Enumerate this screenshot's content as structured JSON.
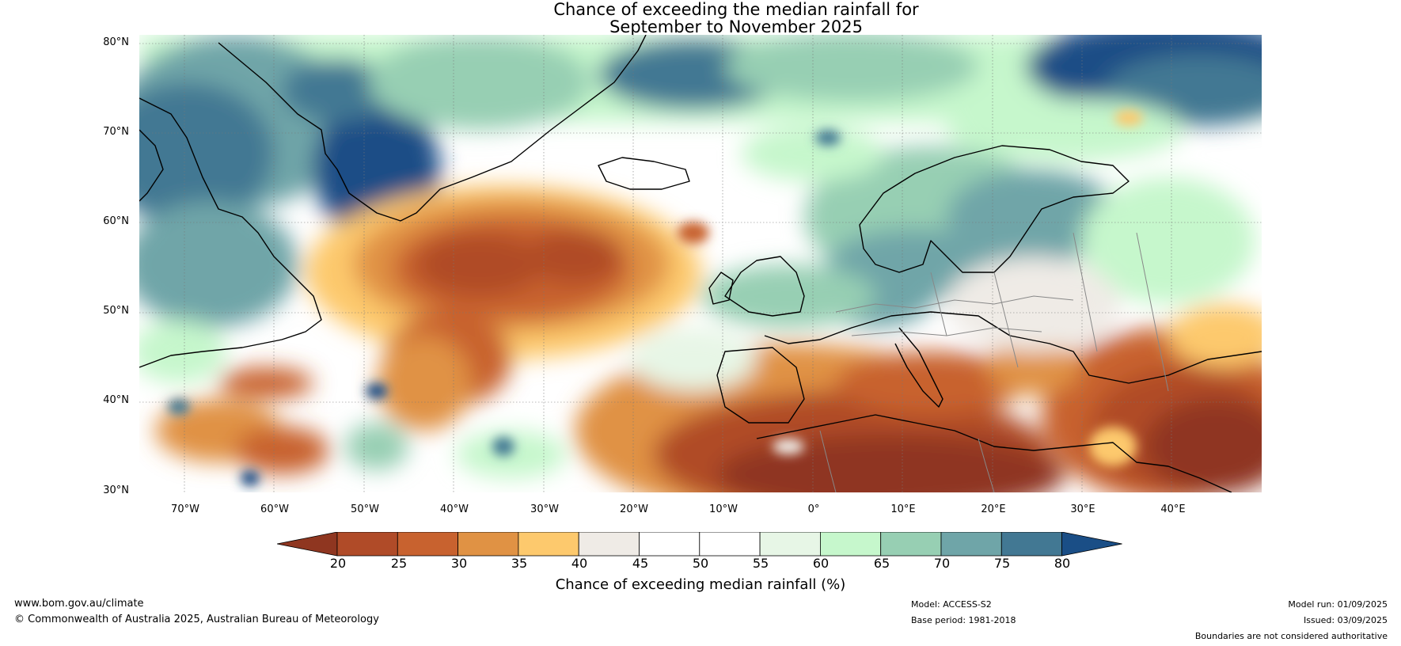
{
  "title": {
    "line1": "Chance of exceeding the median rainfall for",
    "line2": "September to November 2025"
  },
  "map": {
    "lat_labels": [
      "80°N",
      "70°N",
      "60°N",
      "50°N",
      "40°N",
      "30°N"
    ],
    "lon_labels": [
      "70°W",
      "60°W",
      "50°W",
      "40°W",
      "30°W",
      "20°W",
      "10°W",
      "0°",
      "10°E",
      "20°E",
      "30°E",
      "40°E"
    ],
    "extent": {
      "lon_min": -75,
      "lon_max": 50,
      "lat_min": 30,
      "lat_max": 81
    }
  },
  "colorbar": {
    "ticks": [
      "20",
      "25",
      "30",
      "35",
      "40",
      "45",
      "50",
      "55",
      "60",
      "65",
      "70",
      "75",
      "80"
    ],
    "colors": [
      "#8f3620",
      "#b04b28",
      "#c8622f",
      "#e09244",
      "#fdc96d",
      "#efebe6",
      "#ffffff",
      "#ffffff",
      "#e7f6e6",
      "#c6f7cc",
      "#97cfb3",
      "#6fa5a8",
      "#427893",
      "#1a4e86"
    ],
    "label": "Chance of exceeding median rainfall (%)"
  },
  "footer": {
    "website": "www.bom.gov.au/climate",
    "copyright": "© Commonwealth of Australia 2025, Australian Bureau of Meteorology",
    "model": "Model: ACCESS-S2",
    "base_period": "Base period: 1981-2018",
    "model_run": "Model run: 01/09/2025",
    "issued": "Issued: 03/09/2025",
    "disclaimer": "Boundaries are not considered authoritative"
  }
}
